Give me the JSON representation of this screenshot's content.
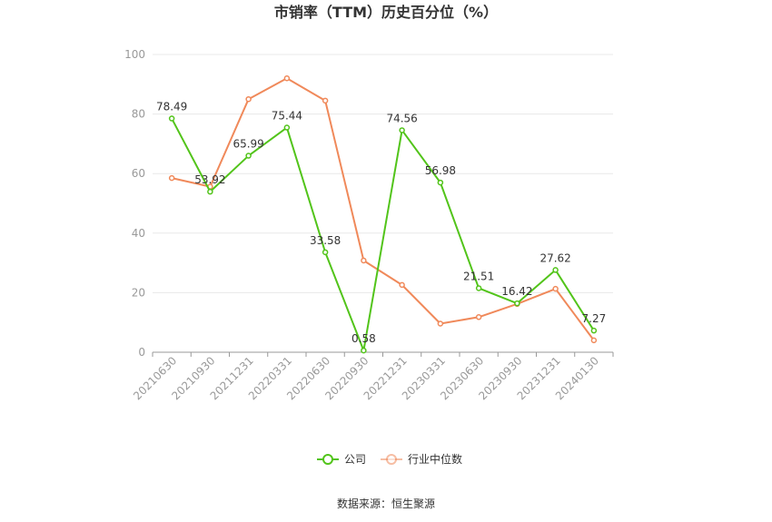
{
  "chart_data": {
    "type": "line",
    "title": "市销率（TTM）历史百分位（%）",
    "xlabel": "",
    "ylabel": "",
    "ylim": [
      0,
      100
    ],
    "yticks": [
      0,
      20,
      40,
      60,
      80,
      100
    ],
    "categories": [
      "20210630",
      "20210930",
      "20211231",
      "20220331",
      "20220630",
      "20220930",
      "20221231",
      "20230331",
      "20230630",
      "20230930",
      "20231231",
      "20240130"
    ],
    "series": [
      {
        "name": "公司",
        "color": "#52c41a",
        "values": [
          78.49,
          53.92,
          65.99,
          75.44,
          33.58,
          0.58,
          74.56,
          56.98,
          21.51,
          16.42,
          27.62,
          7.27
        ],
        "show_labels": true
      },
      {
        "name": "行业中位数",
        "color": "#f0895a",
        "values": [
          58.5,
          55.6,
          85.0,
          92.0,
          84.5,
          30.8,
          22.6,
          9.6,
          11.8,
          16.2,
          21.3,
          4.0
        ],
        "show_labels": false
      }
    ],
    "grid": true,
    "legend": "bottom-center"
  },
  "source": "数据来源：恒生聚源"
}
